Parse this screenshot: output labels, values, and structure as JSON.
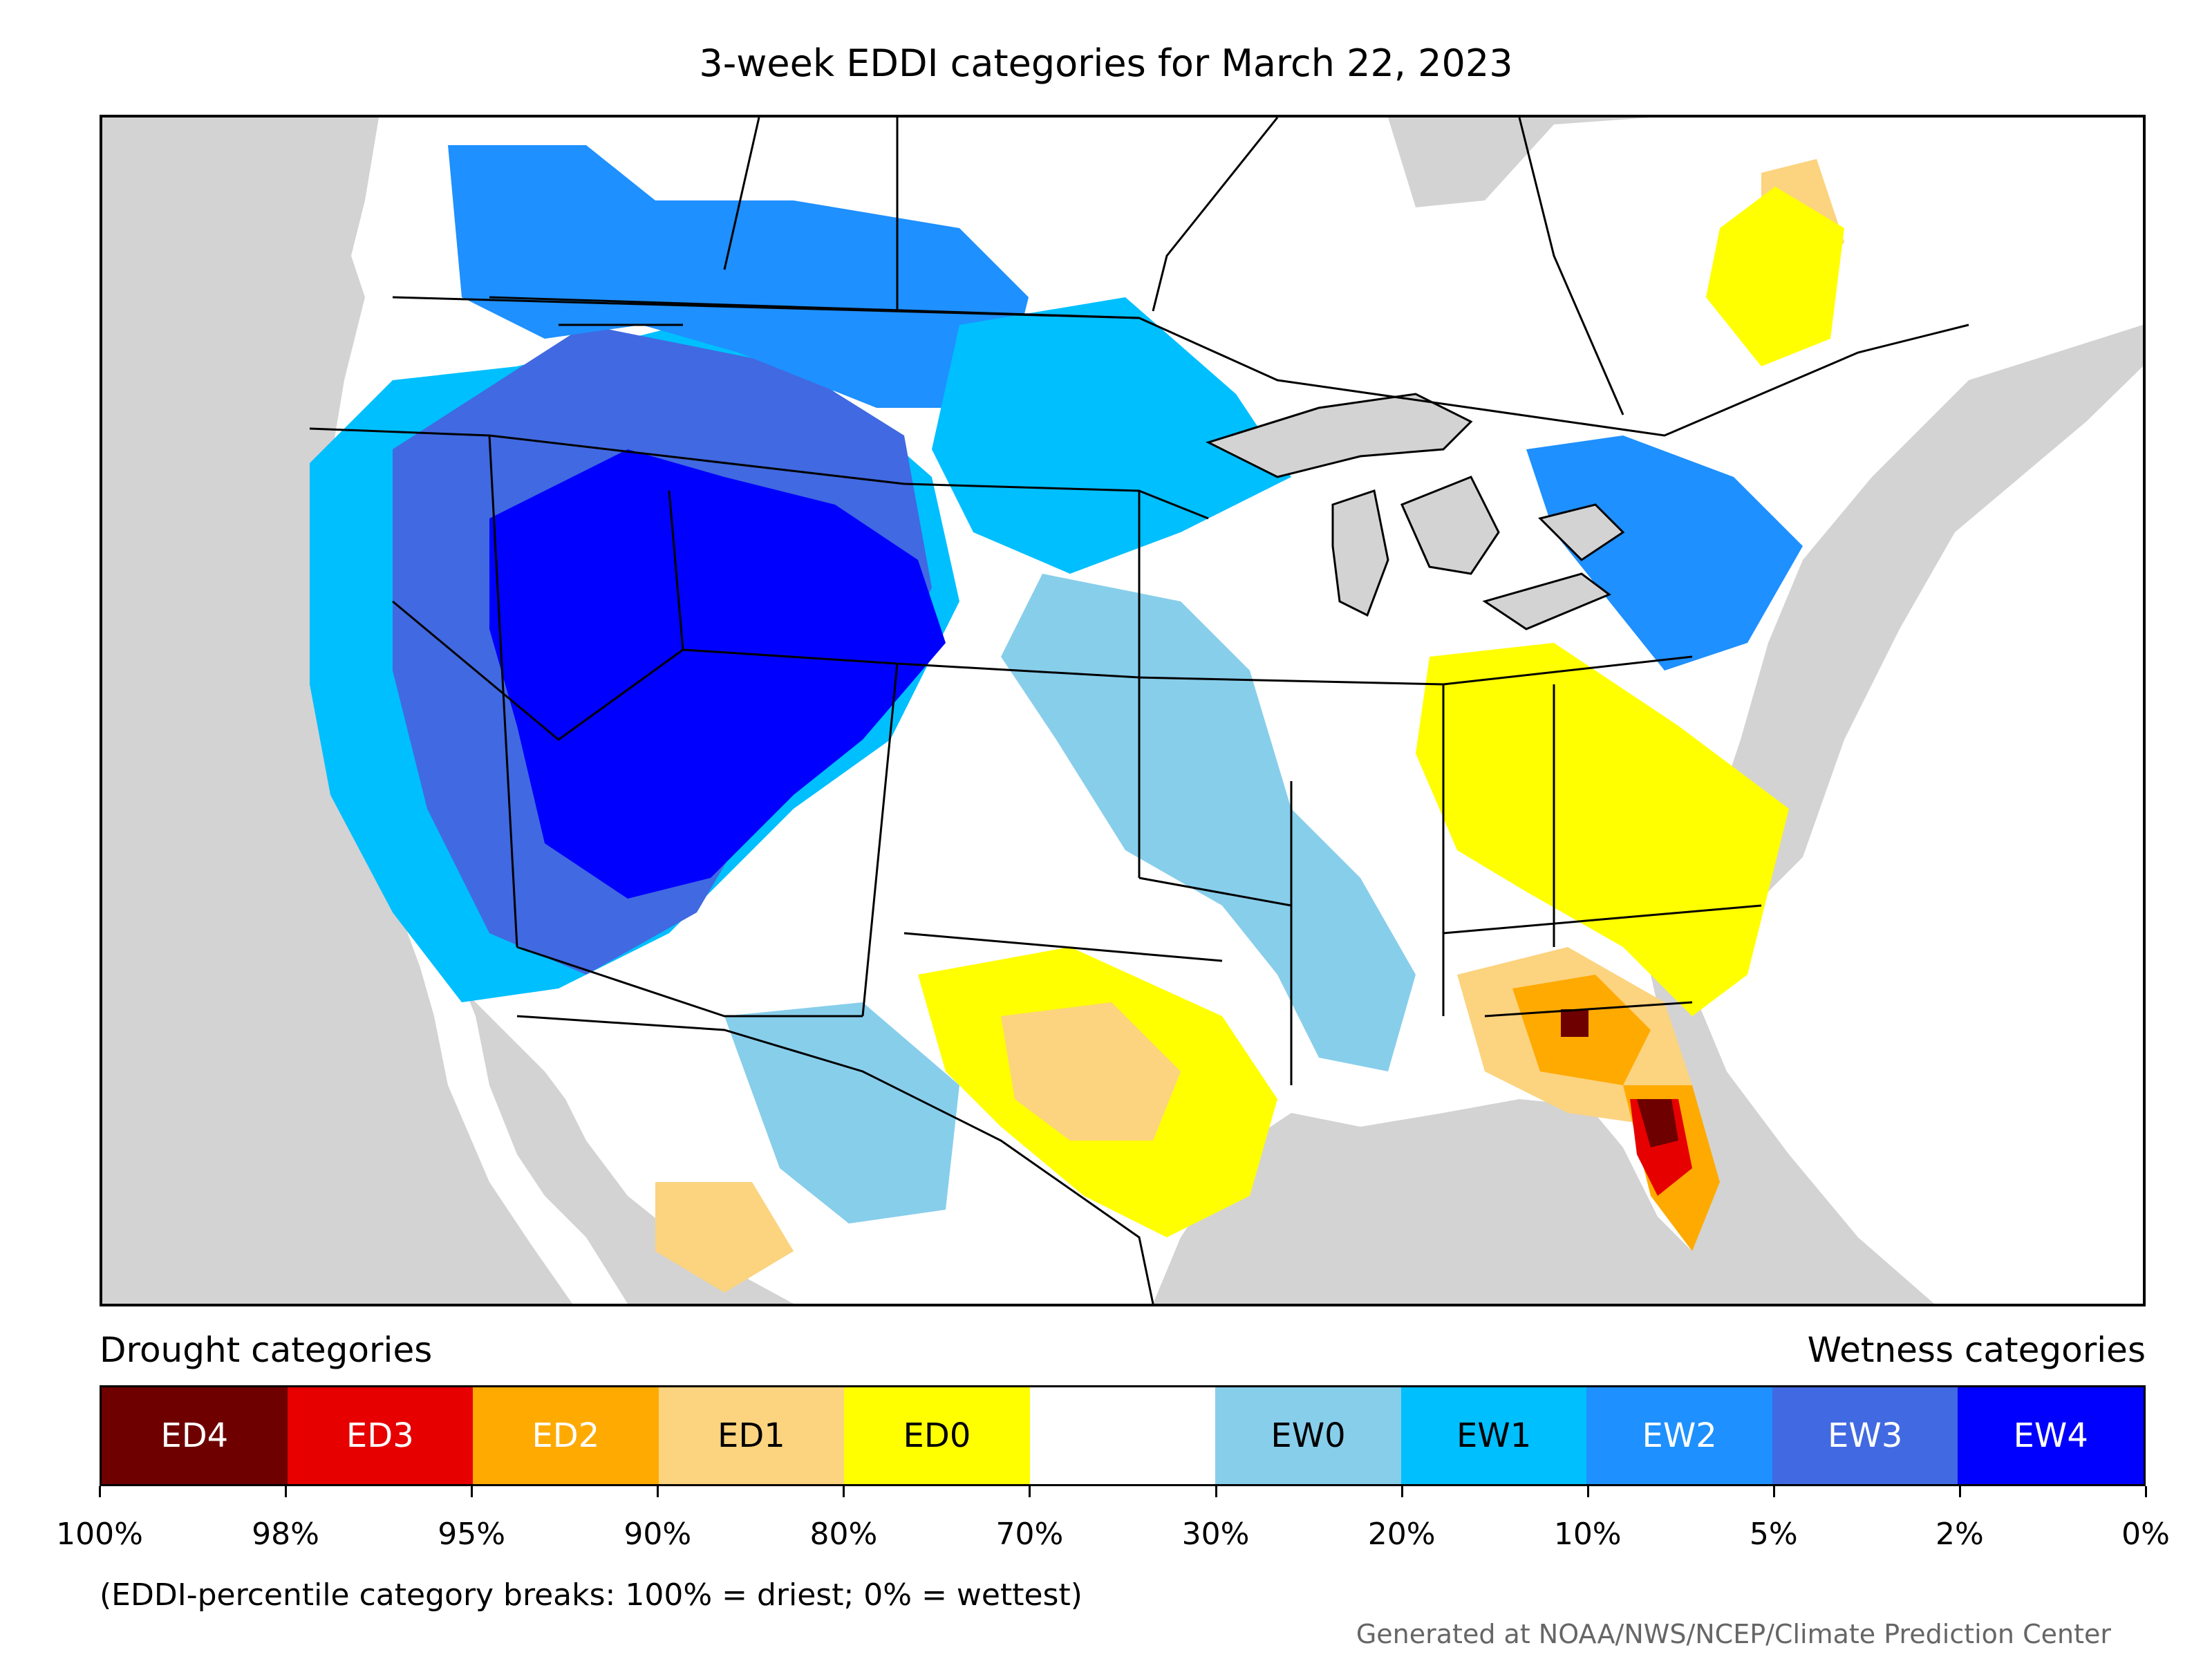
{
  "title": "3-week EDDI categories for March 22, 2023",
  "legend": {
    "drought_heading": "Drought categories",
    "wetness_heading": "Wetness categories",
    "categories": [
      {
        "label": "ED4",
        "color": "#6e0000",
        "text_color": "#ffffff"
      },
      {
        "label": "ED3",
        "color": "#e60000",
        "text_color": "#ffffff"
      },
      {
        "label": "ED2",
        "color": "#ffaa00",
        "text_color": "#ffffff"
      },
      {
        "label": "ED1",
        "color": "#fcd37f",
        "text_color": "#000000"
      },
      {
        "label": "ED0",
        "color": "#ffff00",
        "text_color": "#000000"
      },
      {
        "label": "",
        "color": "#ffffff",
        "text_color": "#000000"
      },
      {
        "label": "EW0",
        "color": "#87ceeb",
        "text_color": "#000000"
      },
      {
        "label": "EW1",
        "color": "#00bfff",
        "text_color": "#000000"
      },
      {
        "label": "EW2",
        "color": "#1e90ff",
        "text_color": "#ffffff"
      },
      {
        "label": "EW3",
        "color": "#4169e1",
        "text_color": "#ffffff"
      },
      {
        "label": "EW4",
        "color": "#0000ff",
        "text_color": "#ffffff"
      }
    ],
    "tick_labels": [
      "100%",
      "98%",
      "95%",
      "90%",
      "80%",
      "70%",
      "30%",
      "20%",
      "10%",
      "5%",
      "2%",
      "0%"
    ]
  },
  "footnote": "(EDDI-percentile category breaks: 100% = driest; 0% = wettest)",
  "credit": "Generated at NOAA/NWS/NCEP/Climate Prediction Center",
  "map": {
    "ocean_color": "#d3d3d3",
    "land_color": "#ffffff",
    "boundary_color": "#000000"
  }
}
